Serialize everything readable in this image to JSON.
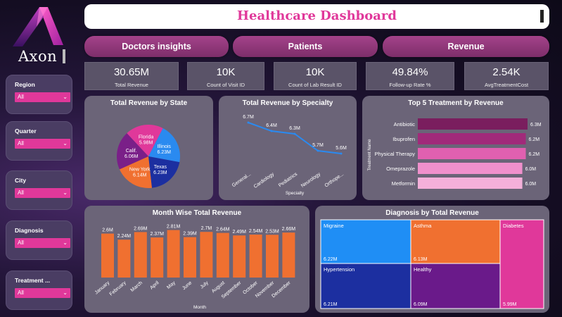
{
  "logo": {
    "text": "Axon"
  },
  "header": {
    "title": "Healthcare Dashboard"
  },
  "nav": [
    {
      "label": "Doctors insights"
    },
    {
      "label": "Patients"
    },
    {
      "label": "Revenue"
    }
  ],
  "kpis": [
    {
      "value": "30.65M",
      "label": "Total Revenue"
    },
    {
      "value": "10K",
      "label": "Count of Visit ID"
    },
    {
      "value": "10K",
      "label": "Count of Lab Result ID"
    },
    {
      "value": "49.84%",
      "label": "Follow-up Rate %"
    },
    {
      "value": "2.54K",
      "label": "AvgTreatmentCost"
    }
  ],
  "slicers": [
    {
      "title": "Region",
      "value": "All"
    },
    {
      "title": "Quarter",
      "value": "All"
    },
    {
      "title": "City",
      "value": "All"
    },
    {
      "title": "Diagnosis",
      "value": "All"
    },
    {
      "title": "Treatment ...",
      "value": "All"
    }
  ],
  "chart_data": [
    {
      "type": "pie",
      "title": "Total Revenue by State",
      "categories": [
        "Florida",
        "Illinois",
        "Texas",
        "New York",
        "Calif."
      ],
      "labels": [
        "5.98M",
        "6.23M",
        "6.23M",
        "6.14M",
        "6.06M"
      ],
      "values": [
        5.98,
        6.23,
        6.23,
        6.14,
        6.06
      ],
      "colors": [
        "#e0389a",
        "#2a8af0",
        "#1c2fa0",
        "#f07030",
        "#7a1f88"
      ]
    },
    {
      "type": "line",
      "title": "Total Revenue by Specialty",
      "xlabel": "Specialty",
      "categories": [
        "General...",
        "Cardiology",
        "Pediatrics",
        "Neurology",
        "Orthope..."
      ],
      "labels": [
        "6.7M",
        "6.4M",
        "6.3M",
        "5.7M",
        "5.6M"
      ],
      "values": [
        6.7,
        6.4,
        6.3,
        5.7,
        5.6
      ],
      "colors": [
        "#2a8af0"
      ]
    },
    {
      "type": "bar",
      "title": "Top 5 Treatment by Revenue",
      "ylabel": "Treatment Name",
      "categories": [
        "Antibiotic",
        "Ibuprofen",
        "Physical Therapy",
        "Omeprazole",
        "Metformin"
      ],
      "labels": [
        "6.3M",
        "6.2M",
        "6.2M",
        "6.0M",
        "6.0M"
      ],
      "values": [
        6.3,
        6.2,
        6.2,
        6.0,
        6.0
      ],
      "colors": [
        "#7a1e5e",
        "#a12a7a",
        "#e060b0",
        "#f090cc",
        "#f4b0da"
      ]
    },
    {
      "type": "bar",
      "title": "Month Wise Total Revenue",
      "xlabel": "Month",
      "categories": [
        "January",
        "February",
        "March",
        "April",
        "May",
        "June",
        "July",
        "August",
        "September",
        "October",
        "November",
        "December"
      ],
      "labels": [
        "2.6M",
        "2.24M",
        "2.69M",
        "2.37M",
        "2.81M",
        "2.39M",
        "2.7M",
        "2.64M",
        "2.49M",
        "2.54M",
        "2.53M",
        "2.66M"
      ],
      "values": [
        2.6,
        2.24,
        2.69,
        2.37,
        2.81,
        2.39,
        2.7,
        2.64,
        2.49,
        2.54,
        2.53,
        2.66
      ],
      "colors": [
        "#f07030"
      ]
    },
    {
      "type": "heatmap",
      "title": "Diagnosis by Total Revenue",
      "categories": [
        "Migraine",
        "Asthma",
        "Diabetes",
        "Hypertension",
        "Healthy"
      ],
      "labels": [
        "6.22M",
        "6.13M",
        "5.99M",
        "6.21M",
        "6.09M"
      ],
      "values": [
        6.22,
        6.13,
        5.99,
        6.21,
        6.09
      ],
      "colors": [
        "#1f8ef5",
        "#f07030",
        "#e0389a",
        "#1c2fa0",
        "#6a1a8a"
      ]
    }
  ]
}
